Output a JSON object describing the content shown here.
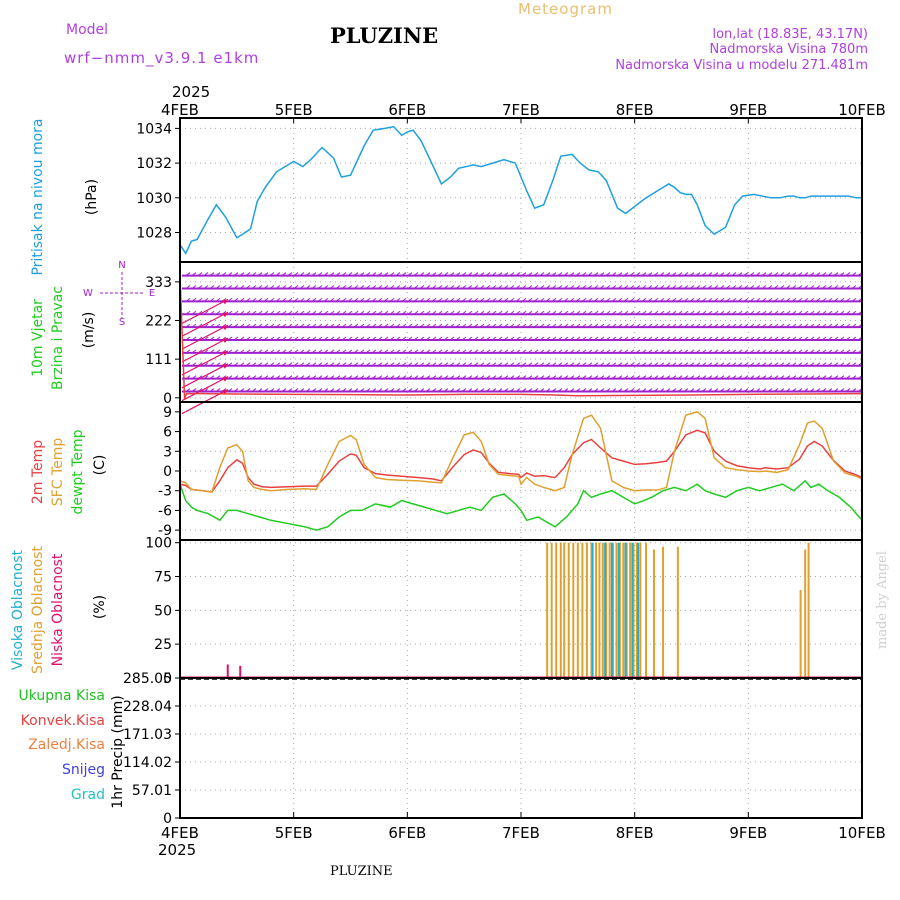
{
  "header": {
    "model_label": "Model",
    "model_name": "wrf−nmm_v3.9.1  e1km",
    "station": "PLUZINE",
    "meteogram": "Meteogram",
    "lonlat": "lon,lat (18.83E, 43.17N)",
    "elevation": "Nadmorska Visina 780m",
    "model_elevation": "Nadmorska Visina u modelu 271.481m",
    "footer_station": "PLUZINE",
    "credit": "made by Angel"
  },
  "colors": {
    "pressure": "#1ea0e0",
    "temp2m": "#e84040",
    "sfc_temp": "#e0a030",
    "dewpt": "#20cc20",
    "wind_barbs": "#a020d0",
    "wind_arrows": "#e0106a",
    "cloud_high": "#20b0d0",
    "cloud_mid": "#e0a030",
    "cloud_low": "#e0106a",
    "precip_total": "#20c020",
    "precip_conv": "#e84040",
    "precip_frozen": "#f08040",
    "precip_snow": "#4040e0",
    "precip_hail": "#20c0c0",
    "header_purple": "#b040e0",
    "header_gold": "#e8c070"
  },
  "time_axis": {
    "year": "2025",
    "ticks": [
      "4FEB",
      "5FEB",
      "6FEB",
      "7FEB",
      "8FEB",
      "9FEB",
      "10FEB"
    ]
  },
  "chart_data": [
    {
      "type": "line",
      "id": "pressure",
      "ylabel": "Pritisak na nivou mora",
      "unit": "(hPa)",
      "ylim": [
        1026.3,
        1034.6
      ],
      "yticks": [
        "1028",
        "1030",
        "1032",
        "1034"
      ],
      "ytick_values": [
        1028,
        1030,
        1032,
        1034
      ],
      "grid": true,
      "series": [
        {
          "name": "Pritisak na nivou mora",
          "x": [
            4.0,
            4.05,
            4.1,
            4.15,
            4.25,
            4.32,
            4.4,
            4.5,
            4.55,
            4.62,
            4.68,
            4.75,
            4.85,
            4.95,
            5.0,
            5.08,
            5.15,
            5.25,
            5.35,
            5.42,
            5.5,
            5.55,
            5.62,
            5.7,
            5.8,
            5.88,
            5.95,
            6.0,
            6.05,
            6.12,
            6.2,
            6.3,
            6.38,
            6.45,
            6.52,
            6.58,
            6.65,
            6.75,
            6.85,
            6.95,
            7.05,
            7.12,
            7.2,
            7.28,
            7.35,
            7.45,
            7.52,
            7.6,
            7.68,
            7.75,
            7.85,
            7.92,
            8.0,
            8.08,
            8.15,
            8.25,
            8.3,
            8.35,
            8.4,
            8.45,
            8.5,
            8.55,
            8.62,
            8.7,
            8.8,
            8.88,
            8.95,
            9.05,
            9.12,
            9.2,
            9.28,
            9.35,
            9.4,
            9.45,
            9.5,
            9.55,
            9.62,
            9.7,
            9.8,
            9.88,
            9.95,
            10.0
          ],
          "y": [
            1027.3,
            1026.8,
            1027.5,
            1027.6,
            1028.8,
            1029.6,
            1028.9,
            1027.7,
            1027.9,
            1028.2,
            1029.8,
            1030.6,
            1031.5,
            1031.9,
            1032.1,
            1031.8,
            1032.2,
            1032.9,
            1032.3,
            1031.2,
            1031.3,
            1032.0,
            1033.0,
            1033.9,
            1034.0,
            1034.1,
            1033.6,
            1033.8,
            1033.9,
            1033.3,
            1032.2,
            1030.8,
            1031.2,
            1031.7,
            1031.8,
            1031.9,
            1031.8,
            1032.0,
            1032.2,
            1032.0,
            1030.4,
            1029.4,
            1029.6,
            1031.0,
            1032.4,
            1032.5,
            1032.0,
            1031.6,
            1031.5,
            1031.0,
            1029.4,
            1029.1,
            1029.5,
            1029.9,
            1030.2,
            1030.6,
            1030.8,
            1030.6,
            1030.3,
            1030.2,
            1030.2,
            1029.6,
            1028.4,
            1027.9,
            1028.3,
            1029.6,
            1030.1,
            1030.2,
            1030.1,
            1030.0,
            1030.0,
            1030.1,
            1030.1,
            1030.0,
            1030.0,
            1030.1,
            1030.1,
            1030.1,
            1030.1,
            1030.1,
            1030.0,
            1030.0
          ]
        }
      ]
    },
    {
      "type": "line",
      "id": "wind",
      "ylabel_lines": [
        "10m Vjetar",
        "Brzina i Pravac"
      ],
      "unit": "(m/s)",
      "ylim": [
        -12,
        390
      ],
      "yticks": [
        "0",
        "111",
        "222",
        "333"
      ],
      "ytick_values": [
        0,
        111,
        222,
        333
      ],
      "compass": {
        "n": "N",
        "s": "S",
        "e": "E",
        "w": "W"
      },
      "grid": true,
      "barb_rows": [
        18,
        55,
        92,
        129,
        166,
        203,
        240,
        277,
        314,
        351
      ],
      "series": [
        {
          "name": "speed",
          "x": [
            4.0,
            4.04,
            4.06,
            4.2,
            4.5,
            5.0,
            5.5,
            6.0,
            6.5,
            7.0,
            7.3,
            7.5,
            8.0,
            8.5,
            9.0,
            9.5,
            10.0
          ],
          "y": [
            350,
            0,
            12,
            12,
            11,
            10,
            9,
            8,
            10,
            10,
            8,
            6,
            7,
            8,
            10,
            11,
            12
          ]
        }
      ]
    },
    {
      "type": "line",
      "id": "temperature",
      "ylabels": [
        "2m Temp",
        "SFC Temp",
        "dewpt Temp"
      ],
      "unit": "(C)",
      "ylim": [
        -10.5,
        10.5
      ],
      "yticks": [
        "-9",
        "-6",
        "-3",
        "0",
        "3",
        "6",
        "9"
      ],
      "ytick_values": [
        -9,
        -6,
        -3,
        0,
        3,
        6,
        9
      ],
      "grid": true,
      "series": [
        {
          "name": "2m Temp",
          "x": [
            4.0,
            4.05,
            4.1,
            4.2,
            4.28,
            4.35,
            4.42,
            4.5,
            4.55,
            4.6,
            4.65,
            4.72,
            4.8,
            4.95,
            5.1,
            5.2,
            5.3,
            5.4,
            5.5,
            5.55,
            5.62,
            5.72,
            5.82,
            5.95,
            6.1,
            6.22,
            6.3,
            6.4,
            6.5,
            6.58,
            6.65,
            6.72,
            6.8,
            6.9,
            6.98,
            7.0,
            7.05,
            7.12,
            7.2,
            7.3,
            7.38,
            7.45,
            7.55,
            7.62,
            7.7,
            7.8,
            7.9,
            8.0,
            8.1,
            8.2,
            8.28,
            8.35,
            8.45,
            8.55,
            8.62,
            8.7,
            8.8,
            8.9,
            9.0,
            9.1,
            9.15,
            9.25,
            9.35,
            9.45,
            9.52,
            9.58,
            9.65,
            9.75,
            9.85,
            9.95,
            10.0
          ],
          "y": [
            -2.0,
            -2.2,
            -2.8,
            -3.0,
            -3.2,
            -1.5,
            0.5,
            1.7,
            1.2,
            -1.0,
            -2.0,
            -2.4,
            -2.5,
            -2.4,
            -2.3,
            -2.3,
            -0.5,
            1.5,
            2.6,
            2.4,
            0.5,
            -0.4,
            -0.6,
            -0.8,
            -1.0,
            -1.2,
            -1.5,
            0.6,
            2.5,
            3.2,
            2.8,
            1.2,
            -0.2,
            -0.4,
            -0.5,
            -1.0,
            -0.3,
            -0.8,
            -0.7,
            -1.0,
            0.5,
            2.5,
            4.3,
            4.8,
            3.5,
            2.0,
            1.5,
            1.0,
            1.1,
            1.3,
            1.5,
            3.0,
            5.5,
            6.2,
            5.8,
            3.0,
            1.5,
            0.8,
            0.5,
            0.3,
            0.5,
            0.3,
            0.5,
            1.8,
            3.8,
            4.5,
            3.8,
            1.6,
            0.0,
            -0.6,
            -1.0
          ]
        },
        {
          "name": "SFC Temp",
          "x": [
            4.0,
            4.05,
            4.1,
            4.2,
            4.28,
            4.35,
            4.42,
            4.5,
            4.55,
            4.6,
            4.65,
            4.72,
            4.8,
            4.95,
            5.1,
            5.2,
            5.3,
            5.4,
            5.5,
            5.55,
            5.62,
            5.72,
            5.82,
            5.95,
            6.1,
            6.22,
            6.3,
            6.4,
            6.5,
            6.58,
            6.65,
            6.72,
            6.8,
            6.9,
            6.98,
            7.0,
            7.05,
            7.12,
            7.2,
            7.3,
            7.38,
            7.45,
            7.55,
            7.62,
            7.7,
            7.8,
            7.9,
            8.0,
            8.1,
            8.2,
            8.28,
            8.35,
            8.45,
            8.55,
            8.62,
            8.7,
            8.8,
            8.9,
            9.0,
            9.1,
            9.15,
            9.25,
            9.35,
            9.45,
            9.52,
            9.58,
            9.65,
            9.75,
            9.85,
            9.95,
            10.0
          ],
          "y": [
            -1.5,
            -1.8,
            -2.8,
            -3.0,
            -3.2,
            0.5,
            3.5,
            4.0,
            3.0,
            -1.5,
            -2.5,
            -2.8,
            -3.0,
            -2.8,
            -2.7,
            -2.8,
            1.0,
            4.5,
            5.4,
            4.8,
            1.0,
            -1.0,
            -1.3,
            -1.4,
            -1.5,
            -1.7,
            -1.8,
            2.0,
            5.5,
            5.9,
            4.5,
            1.0,
            -0.5,
            -0.7,
            -0.8,
            -2.0,
            -1.0,
            -2.0,
            -2.5,
            -3.0,
            -2.5,
            2.5,
            8.0,
            8.5,
            6.5,
            -1.5,
            -2.5,
            -3.0,
            -2.9,
            -2.9,
            -2.5,
            3.0,
            8.5,
            9.0,
            8.0,
            2.0,
            0.5,
            0.2,
            0.0,
            -0.1,
            0.0,
            -0.2,
            0.2,
            4.0,
            7.3,
            7.6,
            6.5,
            1.5,
            -0.3,
            -0.8,
            -1.2
          ]
        },
        {
          "name": "dewpt Temp",
          "x": [
            4.0,
            4.05,
            4.1,
            4.15,
            4.25,
            4.35,
            4.42,
            4.5,
            4.6,
            4.7,
            4.8,
            4.95,
            5.1,
            5.2,
            5.3,
            5.4,
            5.5,
            5.6,
            5.72,
            5.85,
            5.95,
            6.05,
            6.15,
            6.25,
            6.35,
            6.45,
            6.55,
            6.65,
            6.75,
            6.85,
            6.95,
            7.0,
            7.05,
            7.15,
            7.25,
            7.3,
            7.4,
            7.5,
            7.55,
            7.62,
            7.7,
            7.8,
            7.9,
            8.0,
            8.08,
            8.15,
            8.25,
            8.35,
            8.45,
            8.55,
            8.62,
            8.7,
            8.8,
            8.9,
            9.0,
            9.1,
            9.2,
            9.3,
            9.4,
            9.5,
            9.55,
            9.62,
            9.7,
            9.8,
            9.9,
            10.0
          ],
          "y": [
            -2.0,
            -4.5,
            -5.5,
            -6.0,
            -6.5,
            -7.5,
            -6.0,
            -6.0,
            -6.5,
            -7.0,
            -7.5,
            -8.0,
            -8.5,
            -9.0,
            -8.5,
            -7.0,
            -6.0,
            -6.0,
            -5.0,
            -5.5,
            -4.5,
            -5.0,
            -5.5,
            -6.0,
            -6.5,
            -6.0,
            -5.5,
            -6.0,
            -4.0,
            -3.5,
            -5.0,
            -6.0,
            -7.5,
            -7.0,
            -8.0,
            -8.5,
            -7.0,
            -5.0,
            -3.0,
            -4.0,
            -3.5,
            -3.0,
            -4.0,
            -5.0,
            -4.5,
            -4.0,
            -3.0,
            -2.5,
            -3.0,
            -2.0,
            -3.0,
            -3.5,
            -4.0,
            -3.0,
            -2.5,
            -3.0,
            -2.5,
            -2.0,
            -3.0,
            -1.5,
            -2.5,
            -2.0,
            -3.0,
            -4.0,
            -5.5,
            -7.5
          ]
        }
      ]
    },
    {
      "type": "bar",
      "id": "clouds",
      "ylabels": [
        "Visoka Oblacnost",
        "Srednja Oblacnost",
        "Niska Oblacnost"
      ],
      "unit": "(%)",
      "ylim": [
        0,
        102
      ],
      "yticks": [
        "0",
        "25",
        "50",
        "75",
        "100"
      ],
      "ytick_values": [
        0,
        25,
        50,
        75,
        100
      ],
      "grid": true,
      "series": [
        {
          "name": "Srednja Oblacnost",
          "x": [
            4.0,
            7.23,
            7.27,
            7.31,
            7.35,
            7.38,
            7.42,
            7.46,
            7.5,
            7.54,
            7.58,
            7.62,
            7.66,
            7.69,
            7.72,
            7.75,
            7.78,
            7.81,
            7.84,
            7.87,
            7.9,
            7.93,
            7.96,
            7.99,
            8.02,
            8.05,
            8.1,
            8.17,
            8.25,
            8.38,
            9.46,
            9.5,
            9.53
          ],
          "y": [
            100,
            100,
            100,
            100,
            100,
            100,
            100,
            100,
            100,
            100,
            100,
            100,
            100,
            100,
            100,
            100,
            100,
            100,
            100,
            100,
            100,
            100,
            100,
            100,
            100,
            100,
            100,
            95,
            97,
            97,
            65,
            95,
            100
          ]
        },
        {
          "name": "Visoka Oblacnost",
          "x": [
            4.0,
            7.63,
            7.74,
            7.8,
            7.86,
            7.92,
            7.98,
            8.03
          ],
          "y": [
            100,
            100,
            100,
            100,
            100,
            100,
            100,
            100
          ]
        },
        {
          "name": "Niska Oblacnost",
          "x": [
            4.42,
            4.53
          ],
          "y": [
            10,
            9
          ]
        }
      ]
    },
    {
      "type": "line",
      "id": "precip",
      "ylabel": "1hr Precip (mm)",
      "ylim": [
        0,
        285.05
      ],
      "yticks": [
        "0",
        "57.01",
        "114.02",
        "171.03",
        "228.04",
        "285.05"
      ],
      "ytick_values": [
        0,
        57.01,
        114.02,
        171.03,
        228.04,
        285.05
      ],
      "grid": true,
      "legend": [
        "Ukupna Kisa",
        "Konvek.Kisa",
        "Zaledj.Kisa",
        "Snijeg",
        "Grad"
      ],
      "series": [
        {
          "name": "Ukupna Kisa",
          "x": [
            4.0,
            4.0
          ],
          "y": [
            0,
            285.05
          ]
        }
      ]
    }
  ]
}
